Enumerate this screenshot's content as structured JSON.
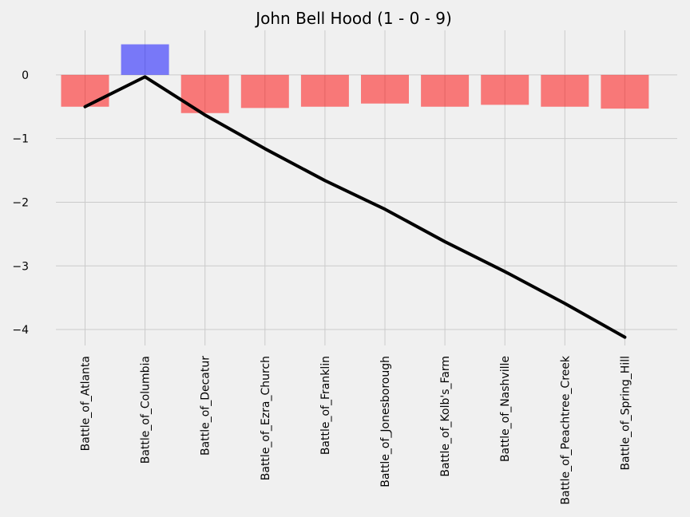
{
  "chart_data": {
    "type": "bar",
    "title": "John Bell Hood (1 - 0 - 9)",
    "xlabel": "",
    "ylabel": "",
    "ylim": [
      -4.25,
      0.7
    ],
    "yticks": [
      0,
      -1,
      -2,
      -3,
      -4
    ],
    "ytick_labels": [
      "0",
      "−1",
      "−2",
      "−3",
      "−4"
    ],
    "grid": true,
    "categories": [
      "Battle_of_Atlanta",
      "Battle_of_Columbia",
      "Battle_of_Decatur",
      "Battle_of_Ezra_Church",
      "Battle_of_Franklin",
      "Battle_of_Jonesborough",
      "Battle_of_Kolb's_Farm",
      "Battle_of_Nashville",
      "Battle_of_Peachtree_Creek",
      "Battle_of_Spring_Hill"
    ],
    "series": [
      {
        "type": "bar",
        "values": [
          -0.5,
          0.48,
          -0.6,
          -0.52,
          -0.5,
          -0.45,
          -0.5,
          -0.47,
          -0.5,
          -0.53
        ],
        "colors": [
          "#ff0000",
          "#0000ff",
          "#ff0000",
          "#ff0000",
          "#ff0000",
          "#ff0000",
          "#ff0000",
          "#ff0000",
          "#ff0000",
          "#ff0000"
        ],
        "opacity": 0.5
      },
      {
        "type": "line",
        "values": [
          -0.5,
          -0.03,
          -0.63,
          -1.16,
          -1.66,
          -2.11,
          -2.62,
          -3.09,
          -3.59,
          -4.12
        ],
        "color": "#000000"
      }
    ]
  }
}
